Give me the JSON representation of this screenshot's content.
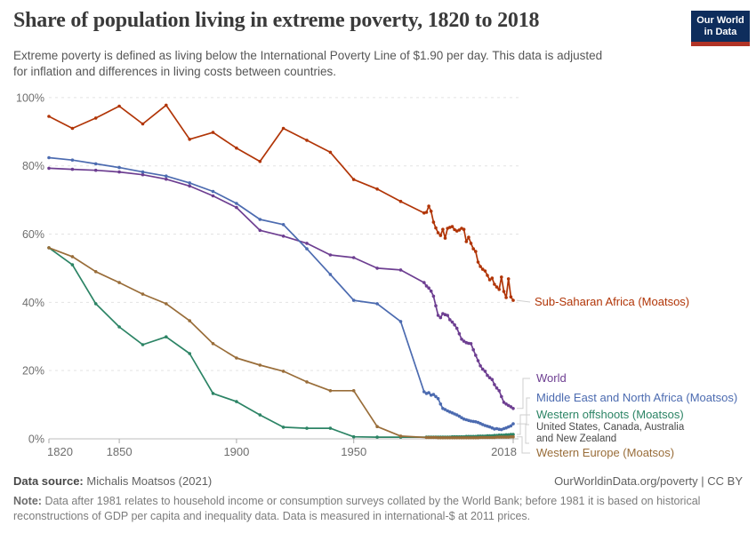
{
  "header": {
    "subtitle_line1": "Extreme poverty is defined as living below the International Poverty Line of $1.90 per day. This data is adjusted",
    "subtitle_line2": "for inflation and differences in living costs between countries.",
    "logo": {
      "line1": "Our World",
      "line2": "in Data",
      "bg_color": "#0e2d5c",
      "stripe_color": "#b13326"
    }
  },
  "chart_data": {
    "type": "line",
    "title": "Share of population living in extreme poverty, 1820 to 2018",
    "subtitle": "Extreme poverty is defined as living below the International Poverty Line of $1.90 per day. This data is adjusted for inflation and differences in living costs between countries.",
    "xlabel": "",
    "ylabel": "",
    "xlim": [
      1820,
      2018
    ],
    "ylim": [
      0,
      100
    ],
    "grid": "horizontal-dashed",
    "legend_position": "right-end-labels",
    "y_ticks": [
      {
        "value": 0,
        "label": "0%"
      },
      {
        "value": 20,
        "label": "20%"
      },
      {
        "value": 40,
        "label": "40%"
      },
      {
        "value": 60,
        "label": "60%"
      },
      {
        "value": 80,
        "label": "80%"
      },
      {
        "value": 100,
        "label": "100%"
      }
    ],
    "x_ticks": [
      {
        "value": 1820,
        "label": "1820"
      },
      {
        "value": 1850,
        "label": "1850"
      },
      {
        "value": 1900,
        "label": "1900"
      },
      {
        "value": 1950,
        "label": "1950"
      },
      {
        "value": 2018,
        "label": "2018"
      }
    ],
    "series": [
      {
        "name": "Sub-Saharan Africa (Moatsos)",
        "color": "#b13507",
        "points": [
          [
            1820,
            94.5
          ],
          [
            1830,
            91
          ],
          [
            1840,
            94
          ],
          [
            1850,
            97.5
          ],
          [
            1860,
            92.3
          ],
          [
            1870,
            97.8
          ],
          [
            1880,
            87.8
          ],
          [
            1890,
            89.8
          ],
          [
            1900,
            85.2
          ],
          [
            1910,
            81.3
          ],
          [
            1920,
            91
          ],
          [
            1930,
            87.5
          ],
          [
            1940,
            84
          ],
          [
            1950,
            76
          ],
          [
            1960,
            73.2
          ],
          [
            1970,
            69.6
          ],
          [
            1980,
            66.2
          ],
          [
            1981,
            66.4
          ],
          [
            1982,
            68.2
          ],
          [
            1983,
            66.7
          ],
          [
            1984,
            63.5
          ],
          [
            1985,
            61.8
          ],
          [
            1986,
            60.4
          ],
          [
            1987,
            59.6
          ],
          [
            1988,
            61.4
          ],
          [
            1989,
            58.8
          ],
          [
            1990,
            61.7
          ],
          [
            1991,
            62
          ],
          [
            1992,
            62.2
          ],
          [
            1993,
            61.3
          ],
          [
            1994,
            60.9
          ],
          [
            1995,
            61.2
          ],
          [
            1996,
            61.7
          ],
          [
            1997,
            61.4
          ],
          [
            1998,
            57.8
          ],
          [
            1999,
            59.1
          ],
          [
            2000,
            57.3
          ],
          [
            2001,
            55.7
          ],
          [
            2002,
            54.9
          ],
          [
            2003,
            51.8
          ],
          [
            2004,
            50.5
          ],
          [
            2005,
            49.7
          ],
          [
            2006,
            49.2
          ],
          [
            2007,
            47.9
          ],
          [
            2008,
            46.6
          ],
          [
            2009,
            47.1
          ],
          [
            2010,
            45.3
          ],
          [
            2011,
            44.5
          ],
          [
            2012,
            43.8
          ],
          [
            2013,
            47.4
          ],
          [
            2014,
            43.2
          ],
          [
            2015,
            41.4
          ],
          [
            2016,
            46.9
          ],
          [
            2017,
            41.6
          ],
          [
            2018,
            40.6
          ]
        ]
      },
      {
        "name": "World",
        "color": "#6d3e91",
        "points": [
          [
            1820,
            79.3
          ],
          [
            1830,
            79
          ],
          [
            1840,
            78.7
          ],
          [
            1850,
            78.2
          ],
          [
            1860,
            77.4
          ],
          [
            1870,
            76.1
          ],
          [
            1880,
            74.1
          ],
          [
            1890,
            71.2
          ],
          [
            1900,
            67.8
          ],
          [
            1910,
            61.1
          ],
          [
            1920,
            59.4
          ],
          [
            1930,
            57.3
          ],
          [
            1940,
            53.9
          ],
          [
            1950,
            53.1
          ],
          [
            1960,
            50
          ],
          [
            1970,
            49.5
          ],
          [
            1980,
            45.8
          ],
          [
            1981,
            44.8
          ],
          [
            1982,
            44.2
          ],
          [
            1983,
            43.3
          ],
          [
            1984,
            41.8
          ],
          [
            1985,
            39
          ],
          [
            1986,
            36.2
          ],
          [
            1987,
            35.5
          ],
          [
            1988,
            36.7
          ],
          [
            1989,
            36.4
          ],
          [
            1990,
            36.2
          ],
          [
            1991,
            34.9
          ],
          [
            1992,
            34.2
          ],
          [
            1993,
            33.4
          ],
          [
            1994,
            32.4
          ],
          [
            1995,
            30.8
          ],
          [
            1996,
            29.2
          ],
          [
            1997,
            28.6
          ],
          [
            1998,
            28.2
          ],
          [
            1999,
            28
          ],
          [
            2000,
            27.9
          ],
          [
            2001,
            26.1
          ],
          [
            2002,
            24.5
          ],
          [
            2003,
            22.9
          ],
          [
            2004,
            21.4
          ],
          [
            2005,
            20.4
          ],
          [
            2006,
            19.8
          ],
          [
            2007,
            18.6
          ],
          [
            2008,
            17.9
          ],
          [
            2009,
            17.4
          ],
          [
            2010,
            15.9
          ],
          [
            2011,
            14.9
          ],
          [
            2012,
            14.1
          ],
          [
            2013,
            12.4
          ],
          [
            2014,
            10.7
          ],
          [
            2015,
            10.2
          ],
          [
            2016,
            9.8
          ],
          [
            2017,
            9.4
          ],
          [
            2018,
            8.9
          ]
        ]
      },
      {
        "name": "Middle East and North Africa (Moatsos)",
        "color": "#4c6bb0",
        "points": [
          [
            1820,
            82.4
          ],
          [
            1830,
            81.7
          ],
          [
            1840,
            80.6
          ],
          [
            1850,
            79.5
          ],
          [
            1860,
            78.2
          ],
          [
            1870,
            77
          ],
          [
            1880,
            75
          ],
          [
            1890,
            72.5
          ],
          [
            1900,
            69
          ],
          [
            1910,
            64.3
          ],
          [
            1920,
            62.8
          ],
          [
            1930,
            55.7
          ],
          [
            1940,
            48.2
          ],
          [
            1950,
            40.6
          ],
          [
            1960,
            39.6
          ],
          [
            1970,
            34.4
          ],
          [
            1980,
            13.8
          ],
          [
            1981,
            13.3
          ],
          [
            1982,
            13.5
          ],
          [
            1983,
            12.8
          ],
          [
            1984,
            13
          ],
          [
            1985,
            12.4
          ],
          [
            1986,
            11.8
          ],
          [
            1987,
            10.2
          ],
          [
            1988,
            8.9
          ],
          [
            1989,
            8.6
          ],
          [
            1990,
            8.2
          ],
          [
            1991,
            7.9
          ],
          [
            1992,
            7.6
          ],
          [
            1993,
            7.3
          ],
          [
            1994,
            7
          ],
          [
            1995,
            6.6
          ],
          [
            1996,
            6.2
          ],
          [
            1997,
            5.8
          ],
          [
            1998,
            5.6
          ],
          [
            1999,
            5.4
          ],
          [
            2000,
            5.2
          ],
          [
            2001,
            5.1
          ],
          [
            2002,
            5
          ],
          [
            2003,
            4.8
          ],
          [
            2004,
            4.5
          ],
          [
            2005,
            4.2
          ],
          [
            2006,
            3.9
          ],
          [
            2007,
            3.7
          ],
          [
            2008,
            3.5
          ],
          [
            2009,
            3.2
          ],
          [
            2010,
            2.9
          ],
          [
            2011,
            3
          ],
          [
            2012,
            2.8
          ],
          [
            2013,
            2.7
          ],
          [
            2014,
            3
          ],
          [
            2015,
            3.2
          ],
          [
            2016,
            3.5
          ],
          [
            2017,
            3.8
          ],
          [
            2018,
            4.4
          ]
        ]
      },
      {
        "name": "Western offshoots (Moatsos)",
        "sublabel": "United States, Canada, Australia and New Zealand",
        "color": "#2c8465",
        "points": [
          [
            1820,
            56
          ],
          [
            1830,
            51
          ],
          [
            1840,
            39.6
          ],
          [
            1850,
            32.8
          ],
          [
            1860,
            27.6
          ],
          [
            1870,
            29.9
          ],
          [
            1880,
            25
          ],
          [
            1890,
            13.3
          ],
          [
            1900,
            10.9
          ],
          [
            1910,
            7
          ],
          [
            1920,
            3.4
          ],
          [
            1930,
            3.1
          ],
          [
            1940,
            3.1
          ],
          [
            1950,
            0.6
          ],
          [
            1960,
            0.5
          ],
          [
            1970,
            0.5
          ],
          [
            1981,
            0.5
          ],
          [
            1982,
            0.5
          ],
          [
            1983,
            0.5
          ],
          [
            1984,
            0.5
          ],
          [
            1985,
            0.5
          ],
          [
            1986,
            0.5
          ],
          [
            1987,
            0.5
          ],
          [
            1988,
            0.5
          ],
          [
            1989,
            0.5
          ],
          [
            1990,
            0.5
          ],
          [
            1991,
            0.5
          ],
          [
            1992,
            0.6
          ],
          [
            1993,
            0.6
          ],
          [
            1994,
            0.6
          ],
          [
            1995,
            0.6
          ],
          [
            1996,
            0.6
          ],
          [
            1997,
            0.6
          ],
          [
            1998,
            0.7
          ],
          [
            1999,
            0.7
          ],
          [
            2000,
            0.7
          ],
          [
            2001,
            0.7
          ],
          [
            2002,
            0.7
          ],
          [
            2003,
            0.8
          ],
          [
            2004,
            0.8
          ],
          [
            2005,
            0.8
          ],
          [
            2006,
            0.8
          ],
          [
            2007,
            0.9
          ],
          [
            2008,
            0.9
          ],
          [
            2009,
            0.9
          ],
          [
            2010,
            1
          ],
          [
            2011,
            1
          ],
          [
            2012,
            1.1
          ],
          [
            2013,
            1.1
          ],
          [
            2014,
            1.1
          ],
          [
            2015,
            1.2
          ],
          [
            2016,
            1.2
          ],
          [
            2017,
            1.3
          ],
          [
            2018,
            1.3
          ]
        ]
      },
      {
        "name": "Western Europe (Moatsos)",
        "color": "#996d39",
        "points": [
          [
            1820,
            56
          ],
          [
            1830,
            53.4
          ],
          [
            1840,
            49
          ],
          [
            1850,
            45.8
          ],
          [
            1860,
            42.4
          ],
          [
            1870,
            39.6
          ],
          [
            1880,
            34.6
          ],
          [
            1890,
            27.9
          ],
          [
            1900,
            23.7
          ],
          [
            1910,
            21.6
          ],
          [
            1920,
            19.8
          ],
          [
            1930,
            16.7
          ],
          [
            1940,
            14.1
          ],
          [
            1950,
            14.1
          ],
          [
            1960,
            3.6
          ],
          [
            1970,
            0.8
          ],
          [
            1981,
            0.4
          ],
          [
            1982,
            0.4
          ],
          [
            1983,
            0.4
          ],
          [
            1984,
            0.4
          ],
          [
            1985,
            0.4
          ],
          [
            1986,
            0.3
          ],
          [
            1987,
            0.3
          ],
          [
            1988,
            0.3
          ],
          [
            1989,
            0.3
          ],
          [
            1990,
            0.3
          ],
          [
            1991,
            0.3
          ],
          [
            1992,
            0.3
          ],
          [
            1993,
            0.3
          ],
          [
            1994,
            0.3
          ],
          [
            1995,
            0.3
          ],
          [
            1996,
            0.3
          ],
          [
            1997,
            0.3
          ],
          [
            1998,
            0.3
          ],
          [
            1999,
            0.3
          ],
          [
            2000,
            0.3
          ],
          [
            2001,
            0.3
          ],
          [
            2002,
            0.3
          ],
          [
            2003,
            0.3
          ],
          [
            2004,
            0.4
          ],
          [
            2005,
            0.4
          ],
          [
            2006,
            0.4
          ],
          [
            2007,
            0.4
          ],
          [
            2008,
            0.4
          ],
          [
            2009,
            0.4
          ],
          [
            2010,
            0.4
          ],
          [
            2011,
            0.5
          ],
          [
            2012,
            0.5
          ],
          [
            2013,
            0.5
          ],
          [
            2014,
            0.5
          ],
          [
            2015,
            0.5
          ],
          [
            2016,
            0.5
          ],
          [
            2017,
            0.6
          ],
          [
            2018,
            0.6
          ]
        ]
      }
    ]
  },
  "footer": {
    "source_label": "Data source:",
    "source_value": "Michalis Moatsos (2021)",
    "link_text": "OurWorldinData.org/poverty | CC BY",
    "note_label": "Note:",
    "note_line1": "Data after 1981 relates to household income or consumption surveys collated by the World Bank; before 1981 it is based on historical",
    "note_line2": "reconstructions of GDP per capita and inequality data. Data is measured in international-$ at 2011 prices."
  }
}
